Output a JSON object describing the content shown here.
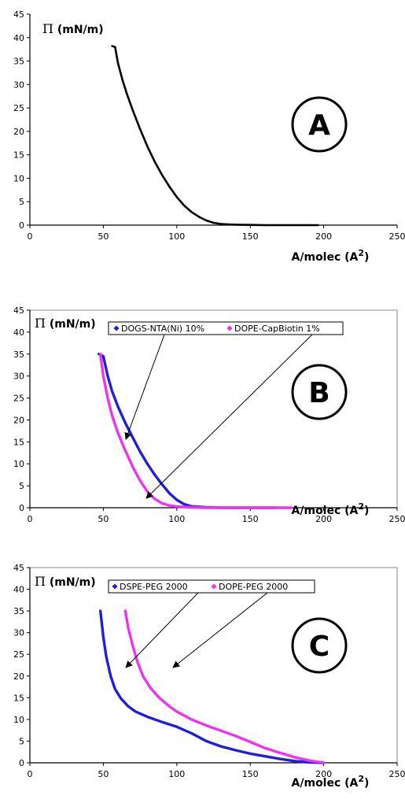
{
  "chart_data": [
    {
      "type": "line",
      "panel": "A",
      "ylabel": "Π (mN/m)",
      "xlabel_main": "A/molec (A",
      "xlabel_sup": "2",
      "xlabel_close": ")",
      "xlim": [
        0,
        250
      ],
      "ylim": [
        0,
        45
      ],
      "xticks": [
        "0",
        "50",
        "100",
        "150",
        "200",
        "250"
      ],
      "yticks": [
        "0",
        "5",
        "10",
        "15",
        "20",
        "25",
        "30",
        "35",
        "40",
        "45"
      ],
      "series": [
        {
          "color": "#000000",
          "x": [
            56,
            58,
            60,
            63,
            66,
            70,
            75,
            80,
            85,
            90,
            95,
            100,
            105,
            110,
            115,
            120,
            125,
            130,
            135,
            140,
            150,
            160,
            170,
            180,
            190,
            196
          ],
          "y": [
            38.2,
            38,
            34.5,
            31,
            28,
            24.5,
            20.5,
            16.8,
            13.5,
            10.7,
            8.2,
            6,
            4.2,
            2.8,
            1.8,
            1,
            0.5,
            0.25,
            0.15,
            0.1,
            0.05,
            0,
            0,
            0,
            0,
            0
          ]
        }
      ]
    },
    {
      "type": "line",
      "panel": "B",
      "ylabel": "Π (mN/m)",
      "xlabel_main": "A/molec (A",
      "xlabel_sup": "2",
      "xlabel_close": ")",
      "xlim": [
        0,
        250
      ],
      "ylim": [
        0,
        45
      ],
      "xticks": [
        "0",
        "50",
        "100",
        "150",
        "200",
        "250"
      ],
      "yticks": [
        "0",
        "5",
        "10",
        "15",
        "20",
        "25",
        "30",
        "35",
        "40",
        "45"
      ],
      "series": [
        {
          "name": "DOGS-NTA(Ni) 10%",
          "color": "#1f1fdc",
          "x": [
            47,
            50,
            53,
            56,
            60,
            65,
            70,
            75,
            80,
            85,
            90,
            95,
            100,
            105,
            110,
            120,
            130,
            140,
            150,
            160,
            167
          ],
          "y": [
            35,
            34.5,
            30,
            26.5,
            23,
            19.3,
            16,
            12.8,
            10,
            7.5,
            5.3,
            3.3,
            1.8,
            0.8,
            0.3,
            0.1,
            0,
            0,
            0,
            0,
            0
          ]
        },
        {
          "name": "DOPE-CapBiotin 1%",
          "color": "#ee33ee",
          "x": [
            48,
            50,
            53,
            56,
            60,
            65,
            70,
            75,
            80,
            85,
            90,
            95,
            100,
            110,
            120,
            130,
            140,
            150,
            160,
            170,
            178
          ],
          "y": [
            35,
            30,
            25,
            21,
            17,
            13,
            9.3,
            6.2,
            3.7,
            2,
            1,
            0.5,
            0.25,
            0.1,
            0,
            0,
            0,
            0,
            0,
            0,
            0
          ]
        }
      ]
    },
    {
      "type": "line",
      "panel": "C",
      "ylabel": "Π (mN/m)",
      "xlabel_main": "A/molec (A",
      "xlabel_sup": "2",
      "xlabel_close": ")",
      "xlim": [
        0,
        250
      ],
      "ylim": [
        0,
        45
      ],
      "xticks": [
        "0",
        "50",
        "100",
        "150",
        "200",
        "250"
      ],
      "yticks": [
        "0",
        "5",
        "10",
        "15",
        "20",
        "25",
        "30",
        "35",
        "40",
        "45"
      ],
      "series": [
        {
          "name": "DSPE-PEG 2000",
          "color": "#1f1fdc",
          "x": [
            48,
            50,
            52,
            55,
            58,
            62,
            67,
            72,
            80,
            90,
            100,
            110,
            120,
            130,
            140,
            150,
            160,
            170,
            180,
            190,
            200
          ],
          "y": [
            35,
            29,
            24.5,
            20,
            17,
            14.8,
            13,
            11.8,
            10.6,
            9.4,
            8.3,
            6.8,
            5,
            3.8,
            2.9,
            2.1,
            1.5,
            0.9,
            0.4,
            0.1,
            0
          ]
        },
        {
          "name": "DOPE-PEG 2000",
          "color": "#ee33ee",
          "x": [
            65,
            67,
            70,
            73,
            77,
            82,
            88,
            95,
            100,
            110,
            120,
            130,
            140,
            150,
            160,
            170,
            180,
            190,
            200
          ],
          "y": [
            35,
            31,
            27,
            23.5,
            20,
            17.3,
            15,
            13,
            11.8,
            10,
            8.6,
            7.4,
            6.2,
            4.8,
            3.4,
            2.3,
            1.3,
            0.5,
            0
          ]
        }
      ]
    }
  ]
}
